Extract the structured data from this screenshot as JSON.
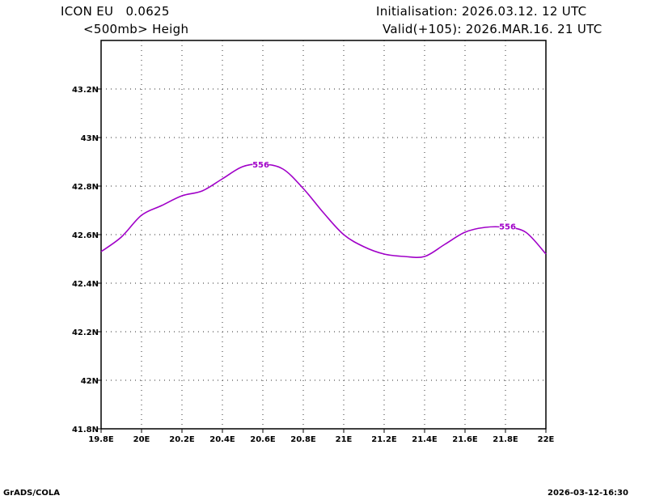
{
  "header": {
    "model": "ICON EU   0.0625",
    "field": "<500mb> Heigh",
    "init": "Initialisation: 2026.03.12. 12 UTC",
    "valid": "Valid(+105): 2026.MAR.16. 21 UTC"
  },
  "footer": {
    "left": "GrADS/COLA",
    "right": "2026-03-12-16:30"
  },
  "chart_data": {
    "type": "line",
    "title": "<500mb> Heigh",
    "xlim": [
      19.8,
      22.0
    ],
    "ylim": [
      41.8,
      43.4
    ],
    "xticks": [
      19.8,
      20.0,
      20.2,
      20.4,
      20.6,
      20.8,
      21.0,
      21.2,
      21.4,
      21.6,
      21.8,
      22.0
    ],
    "xtick_labels": [
      "19.8E",
      "20E",
      "20.2E",
      "20.4E",
      "20.6E",
      "20.8E",
      "21E",
      "21.2E",
      "21.4E",
      "21.6E",
      "21.8E",
      "22E"
    ],
    "yticks": [
      41.8,
      42.0,
      42.2,
      42.4,
      42.6,
      42.8,
      43.0,
      43.2
    ],
    "ytick_labels": [
      "41.8N",
      "42N",
      "42.2N",
      "42.4N",
      "42.6N",
      "42.8N",
      "43N",
      "43.2N"
    ],
    "grid": true,
    "line_color": "#a000c8",
    "series": [
      {
        "name": "556 contour",
        "x": [
          19.8,
          19.9,
          20.0,
          20.1,
          20.2,
          20.3,
          20.4,
          20.5,
          20.6,
          20.7,
          20.8,
          20.9,
          21.0,
          21.1,
          21.2,
          21.3,
          21.4,
          21.5,
          21.6,
          21.7,
          21.8,
          21.9,
          22.0
        ],
        "y": [
          42.53,
          42.59,
          42.68,
          42.72,
          42.76,
          42.78,
          42.83,
          42.88,
          42.89,
          42.87,
          42.79,
          42.69,
          42.6,
          42.55,
          42.52,
          42.51,
          42.51,
          42.56,
          42.61,
          42.63,
          42.63,
          42.61,
          42.52
        ]
      }
    ],
    "contour_labels": [
      {
        "text": "556",
        "x": 20.59,
        "y": 42.89
      },
      {
        "text": "556",
        "x": 21.81,
        "y": 42.635
      }
    ]
  }
}
